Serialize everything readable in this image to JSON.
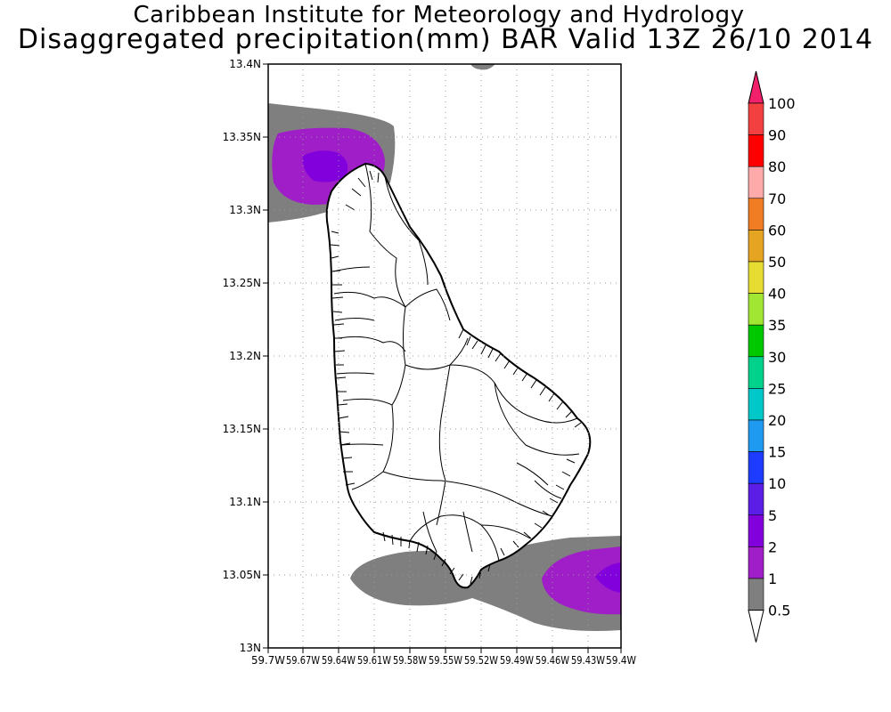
{
  "title": {
    "line1": "Caribbean Institute for Meteorology and Hydrology",
    "line2": "Disaggregated precipitation(mm) BAR Valid 13Z 26/10 2014"
  },
  "axes": {
    "lat_ticks": [
      "13.4N",
      "13.35N",
      "13.3N",
      "13.25N",
      "13.2N",
      "13.15N",
      "13.1N",
      "13.05N",
      "13N"
    ],
    "lon_ticks": [
      "59.7W",
      "59.67W",
      "59.64W",
      "59.61W",
      "59.58W",
      "59.55W",
      "59.52W",
      "59.49W",
      "59.46W",
      "59.43W",
      "59.4W"
    ]
  },
  "colorbar": {
    "levels": [
      "100",
      "90",
      "80",
      "70",
      "60",
      "50",
      "40",
      "35",
      "30",
      "25",
      "20",
      "15",
      "10",
      "5",
      "2",
      "1",
      "0.5"
    ],
    "colors": [
      "#f21f6b",
      "#f24040",
      "#ff0000",
      "#ffaaaa",
      "#f07c24",
      "#e6a423",
      "#e6dc32",
      "#a0e632",
      "#00c800",
      "#00d28c",
      "#00c8c8",
      "#1e9bf0",
      "#1e3cff",
      "#5a1ee6",
      "#8200dc",
      "#a01ec8",
      "#7f7f7f",
      "#ffffff"
    ]
  },
  "fill_colors": {
    "gray": "#7f7f7f",
    "purple": "#a01ec8",
    "violet": "#8200dc"
  }
}
